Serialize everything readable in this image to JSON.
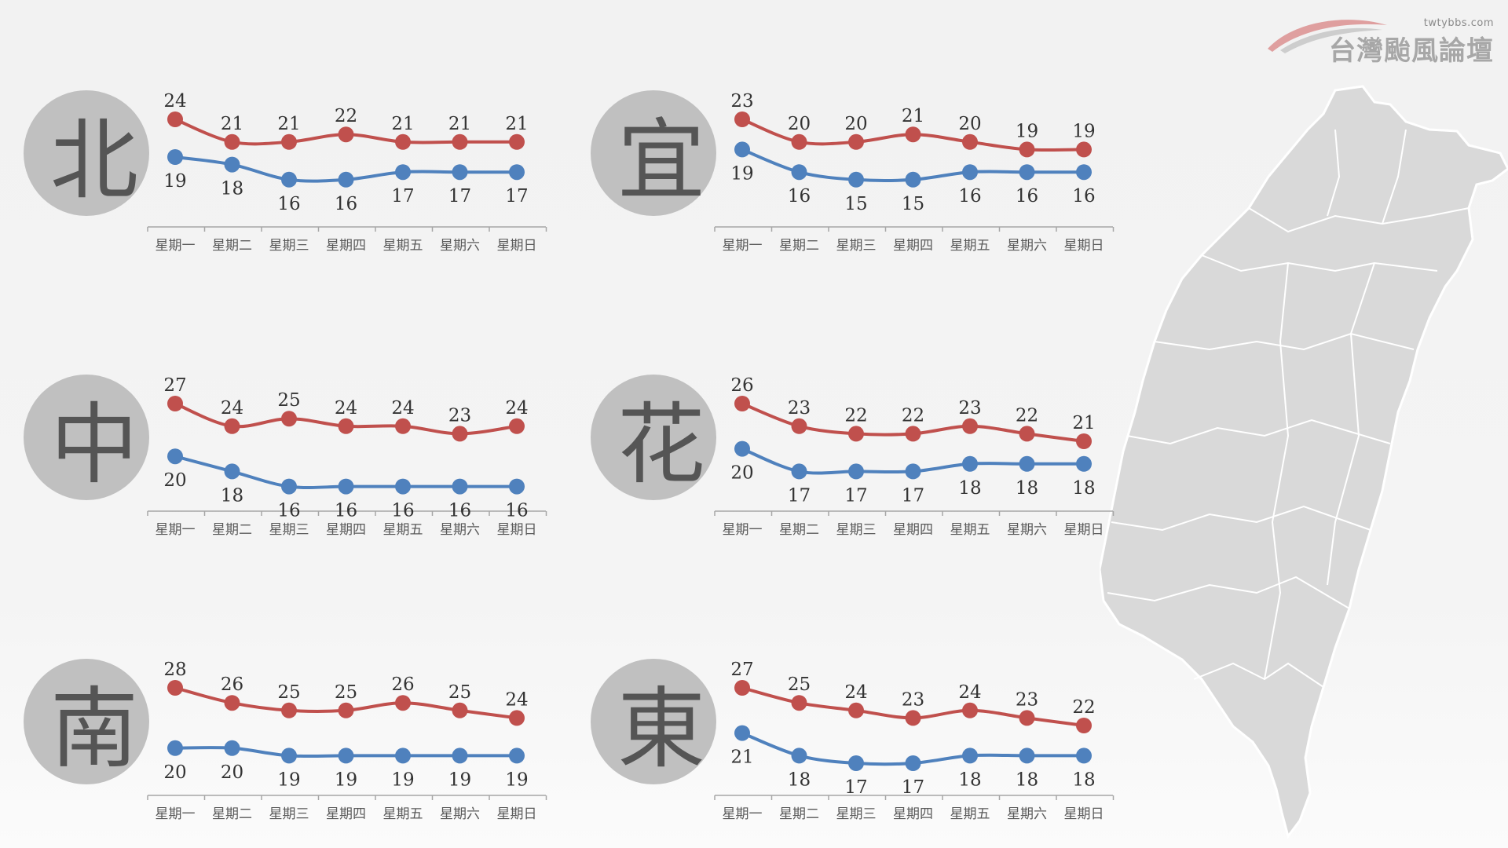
{
  "brand": {
    "url": "twtybbs.com",
    "name": "台灣颱風論壇"
  },
  "colors": {
    "high": "#c0504d",
    "low": "#4f81bd",
    "circle": "#c0c0c0",
    "region_text": "#555555"
  },
  "chart_data": [
    {
      "type": "line",
      "region": "北",
      "categories": [
        "星期一",
        "星期二",
        "星期三",
        "星期四",
        "星期五",
        "星期六",
        "星期日"
      ],
      "series": [
        {
          "values": [
            24,
            21,
            21,
            22,
            21,
            21,
            21
          ]
        },
        {
          "values": [
            19,
            18,
            16,
            16,
            17,
            17,
            17
          ]
        }
      ]
    },
    {
      "type": "line",
      "region": "宜",
      "categories": [
        "星期一",
        "星期二",
        "星期三",
        "星期四",
        "星期五",
        "星期六",
        "星期日"
      ],
      "series": [
        {
          "values": [
            23,
            20,
            20,
            21,
            20,
            19,
            19
          ]
        },
        {
          "values": [
            19,
            16,
            15,
            15,
            16,
            16,
            16
          ]
        }
      ]
    },
    {
      "type": "line",
      "region": "中",
      "categories": [
        "星期一",
        "星期二",
        "星期三",
        "星期四",
        "星期五",
        "星期六",
        "星期日"
      ],
      "series": [
        {
          "values": [
            27,
            24,
            25,
            24,
            24,
            23,
            24
          ]
        },
        {
          "values": [
            20,
            18,
            16,
            16,
            16,
            16,
            16
          ]
        }
      ]
    },
    {
      "type": "line",
      "region": "花",
      "categories": [
        "星期一",
        "星期二",
        "星期三",
        "星期四",
        "星期五",
        "星期六",
        "星期日"
      ],
      "series": [
        {
          "values": [
            26,
            23,
            22,
            22,
            23,
            22,
            21
          ]
        },
        {
          "values": [
            20,
            17,
            17,
            17,
            18,
            18,
            18
          ]
        }
      ]
    },
    {
      "type": "line",
      "region": "南",
      "categories": [
        "星期一",
        "星期二",
        "星期三",
        "星期四",
        "星期五",
        "星期六",
        "星期日"
      ],
      "series": [
        {
          "values": [
            28,
            26,
            25,
            25,
            26,
            25,
            24
          ]
        },
        {
          "values": [
            20,
            20,
            19,
            19,
            19,
            19,
            19
          ]
        }
      ]
    },
    {
      "type": "line",
      "region": "東",
      "categories": [
        "星期一",
        "星期二",
        "星期三",
        "星期四",
        "星期五",
        "星期六",
        "星期日"
      ],
      "series": [
        {
          "values": [
            27,
            25,
            24,
            23,
            24,
            23,
            22
          ]
        },
        {
          "values": [
            21,
            18,
            17,
            17,
            18,
            18,
            18
          ]
        }
      ]
    }
  ]
}
